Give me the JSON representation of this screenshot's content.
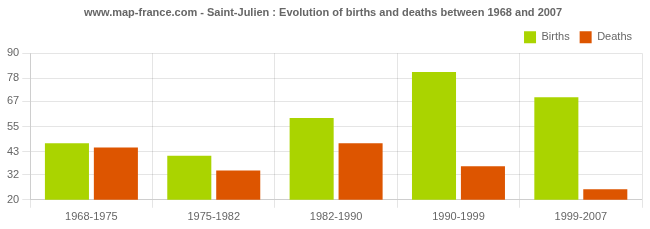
{
  "chart_data": {
    "type": "bar",
    "title": "www.map-france.com - Saint-Julien : Evolution of births and deaths between 1968 and 2007",
    "categories": [
      "1968-1975",
      "1975-1982",
      "1982-1990",
      "1990-1999",
      "1999-2007"
    ],
    "series": [
      {
        "name": "Births",
        "color": "#aad400",
        "values": [
          47,
          41,
          59,
          81,
          69
        ]
      },
      {
        "name": "Deaths",
        "color": "#dd5500",
        "values": [
          45,
          34,
          47,
          36,
          25
        ]
      }
    ],
    "ylim": [
      20,
      90
    ],
    "yticks": [
      20,
      32,
      43,
      55,
      67,
      78,
      90
    ],
    "grid": true,
    "legend": "upper right"
  }
}
